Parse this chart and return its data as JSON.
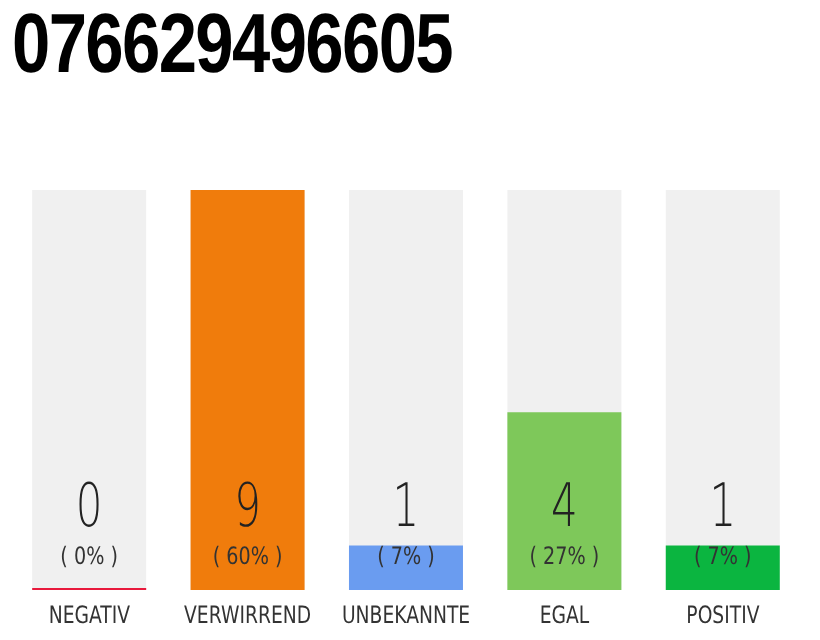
{
  "chart_data": {
    "type": "bar",
    "title": "076629496605",
    "categories": [
      "NEGATIV",
      "VERWIRREND",
      "UNBEKANNTE",
      "EGAL",
      "POSITIV"
    ],
    "values": [
      0,
      9,
      1,
      4,
      1
    ],
    "colors": [
      "#e8193c",
      "#f07c0c",
      "#6a9cf0",
      "#7ec85a",
      "#0bb540"
    ],
    "value_labels": [
      "0",
      "9",
      "1",
      "4",
      "1"
    ],
    "annotations": [
      "( 0% )",
      "( 60% )",
      "( 7% )",
      "( 27% )",
      "( 7% )"
    ]
  }
}
